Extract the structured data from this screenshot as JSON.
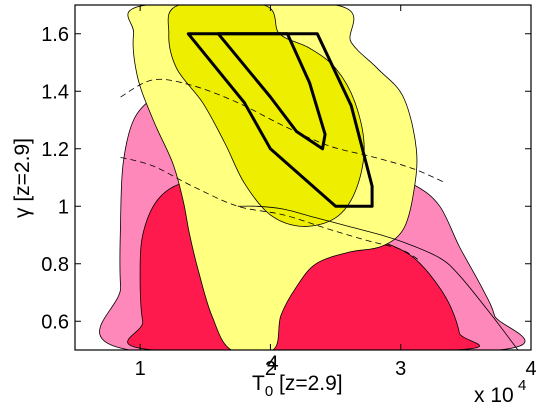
{
  "chart_data": {
    "type": "contour",
    "xlabel": "T",
    "xlabel_sub": "0",
    "xlabel_suffix": " [z=2.9]",
    "ylabel": "γ [z=2.9]",
    "x_multiplier_text": "x 10",
    "x_multiplier_exp": "4",
    "xlim": [
      0.5,
      4.0
    ],
    "ylim": [
      0.5,
      1.7
    ],
    "xticks": [
      {
        "value": 1,
        "label": "1"
      },
      {
        "value": 2,
        "label": "2"
      },
      {
        "value": 3,
        "label": "3"
      },
      {
        "value": 4,
        "label": "4"
      }
    ],
    "yticks": [
      {
        "value": 0.6,
        "label": "0.6"
      },
      {
        "value": 0.8,
        "label": "0.8"
      },
      {
        "value": 1.0,
        "label": "1"
      },
      {
        "value": 1.2,
        "label": "1.2"
      },
      {
        "value": 1.4,
        "label": "1.4"
      },
      {
        "value": 1.6,
        "label": "1.6"
      }
    ],
    "regions": [
      {
        "kind": "filled",
        "fill": "#ff88bb",
        "points": [
          [
            0.92,
            0.5
          ],
          [
            0.85,
            0.72
          ],
          [
            0.85,
            0.95
          ],
          [
            0.87,
            1.15
          ],
          [
            0.95,
            1.3
          ],
          [
            1.1,
            1.38
          ],
          [
            1.28,
            1.44
          ],
          [
            1.5,
            1.45
          ],
          [
            1.75,
            1.42
          ],
          [
            2.0,
            1.36
          ],
          [
            2.3,
            1.26
          ],
          [
            2.6,
            1.18
          ],
          [
            2.88,
            1.11
          ],
          [
            3.12,
            1.07
          ],
          [
            3.3,
            1.0
          ],
          [
            3.45,
            0.86
          ],
          [
            3.62,
            0.72
          ],
          [
            3.72,
            0.62
          ],
          [
            3.75,
            0.5
          ]
        ]
      },
      {
        "kind": "filled",
        "fill": "#ff1a4d",
        "points": [
          [
            1.1,
            0.5
          ],
          [
            1.02,
            0.6
          ],
          [
            1.0,
            0.75
          ],
          [
            1.02,
            0.9
          ],
          [
            1.13,
            1.02
          ],
          [
            1.32,
            1.08
          ],
          [
            1.55,
            1.08
          ],
          [
            1.8,
            1.05
          ],
          [
            2.05,
            1.0
          ],
          [
            2.35,
            0.94
          ],
          [
            2.65,
            0.9
          ],
          [
            2.95,
            0.86
          ],
          [
            3.15,
            0.8
          ],
          [
            3.35,
            0.68
          ],
          [
            3.45,
            0.56
          ],
          [
            3.42,
            0.5
          ]
        ]
      },
      {
        "kind": "filled",
        "fill": "#ffff80",
        "points": [
          [
            1.7,
            0.5
          ],
          [
            1.55,
            0.62
          ],
          [
            1.45,
            0.77
          ],
          [
            1.38,
            0.9
          ],
          [
            1.33,
            1.02
          ],
          [
            1.25,
            1.15
          ],
          [
            1.1,
            1.3
          ],
          [
            0.98,
            1.45
          ],
          [
            0.95,
            1.6
          ],
          [
            1.05,
            1.7
          ],
          [
            2.5,
            1.7
          ],
          [
            2.62,
            1.57
          ],
          [
            2.82,
            1.48
          ],
          [
            3.02,
            1.38
          ],
          [
            3.12,
            1.2
          ],
          [
            3.1,
            1.05
          ],
          [
            3.02,
            0.92
          ],
          [
            2.85,
            0.86
          ],
          [
            2.6,
            0.84
          ],
          [
            2.35,
            0.8
          ],
          [
            2.2,
            0.72
          ],
          [
            2.08,
            0.62
          ],
          [
            2.02,
            0.5
          ]
        ]
      },
      {
        "kind": "filled",
        "fill": "#eeee00",
        "points": [
          [
            1.3,
            1.7
          ],
          [
            1.22,
            1.6
          ],
          [
            1.28,
            1.48
          ],
          [
            1.48,
            1.36
          ],
          [
            1.65,
            1.22
          ],
          [
            1.8,
            1.08
          ],
          [
            2.0,
            0.97
          ],
          [
            2.25,
            0.93
          ],
          [
            2.5,
            0.96
          ],
          [
            2.65,
            1.05
          ],
          [
            2.72,
            1.2
          ],
          [
            2.65,
            1.36
          ],
          [
            2.5,
            1.48
          ],
          [
            2.3,
            1.55
          ],
          [
            2.07,
            1.6
          ],
          [
            1.95,
            1.7
          ]
        ]
      }
    ],
    "outlines": [
      {
        "kind": "contour-line",
        "points": [
          [
            1.75,
            1.0
          ],
          [
            1.9,
            1.0
          ],
          [
            2.1,
            0.99
          ],
          [
            2.35,
            0.96
          ],
          [
            2.6,
            0.93
          ],
          [
            2.85,
            0.9
          ],
          [
            3.05,
            0.87
          ],
          [
            3.3,
            0.82
          ],
          [
            3.45,
            0.76
          ],
          [
            3.7,
            0.62
          ],
          [
            3.9,
            0.5
          ]
        ]
      }
    ],
    "dashed_lines": [
      {
        "points": [
          [
            0.85,
            1.38
          ],
          [
            1.1,
            1.44
          ],
          [
            1.4,
            1.42
          ],
          [
            1.75,
            1.36
          ],
          [
            2.1,
            1.28
          ],
          [
            2.45,
            1.21
          ],
          [
            2.8,
            1.17
          ],
          [
            3.1,
            1.13
          ],
          [
            3.35,
            1.08
          ]
        ]
      },
      {
        "points": [
          [
            0.85,
            1.17
          ],
          [
            1.1,
            1.14
          ],
          [
            1.4,
            1.07
          ],
          [
            1.75,
            1.0
          ],
          [
            2.1,
            0.97
          ],
          [
            2.45,
            0.92
          ],
          [
            2.75,
            0.88
          ],
          [
            3.0,
            0.85
          ],
          [
            3.15,
            0.81
          ]
        ]
      }
    ],
    "bold_contours": [
      {
        "points": [
          [
            1.37,
            1.6
          ],
          [
            2.36,
            1.6
          ],
          [
            2.62,
            1.35
          ],
          [
            2.78,
            1.07
          ],
          [
            2.78,
            1.0
          ],
          [
            2.5,
            1.0
          ],
          [
            2.3,
            1.08
          ],
          [
            2.0,
            1.2
          ],
          [
            1.8,
            1.36
          ],
          [
            1.37,
            1.6
          ]
        ]
      },
      {
        "points": [
          [
            1.6,
            1.6
          ],
          [
            2.13,
            1.6
          ],
          [
            2.3,
            1.43
          ],
          [
            2.42,
            1.25
          ],
          [
            2.4,
            1.2
          ],
          [
            2.2,
            1.26
          ],
          [
            2.0,
            1.38
          ],
          [
            1.6,
            1.6
          ]
        ]
      }
    ],
    "grid": false,
    "legend": "none"
  }
}
